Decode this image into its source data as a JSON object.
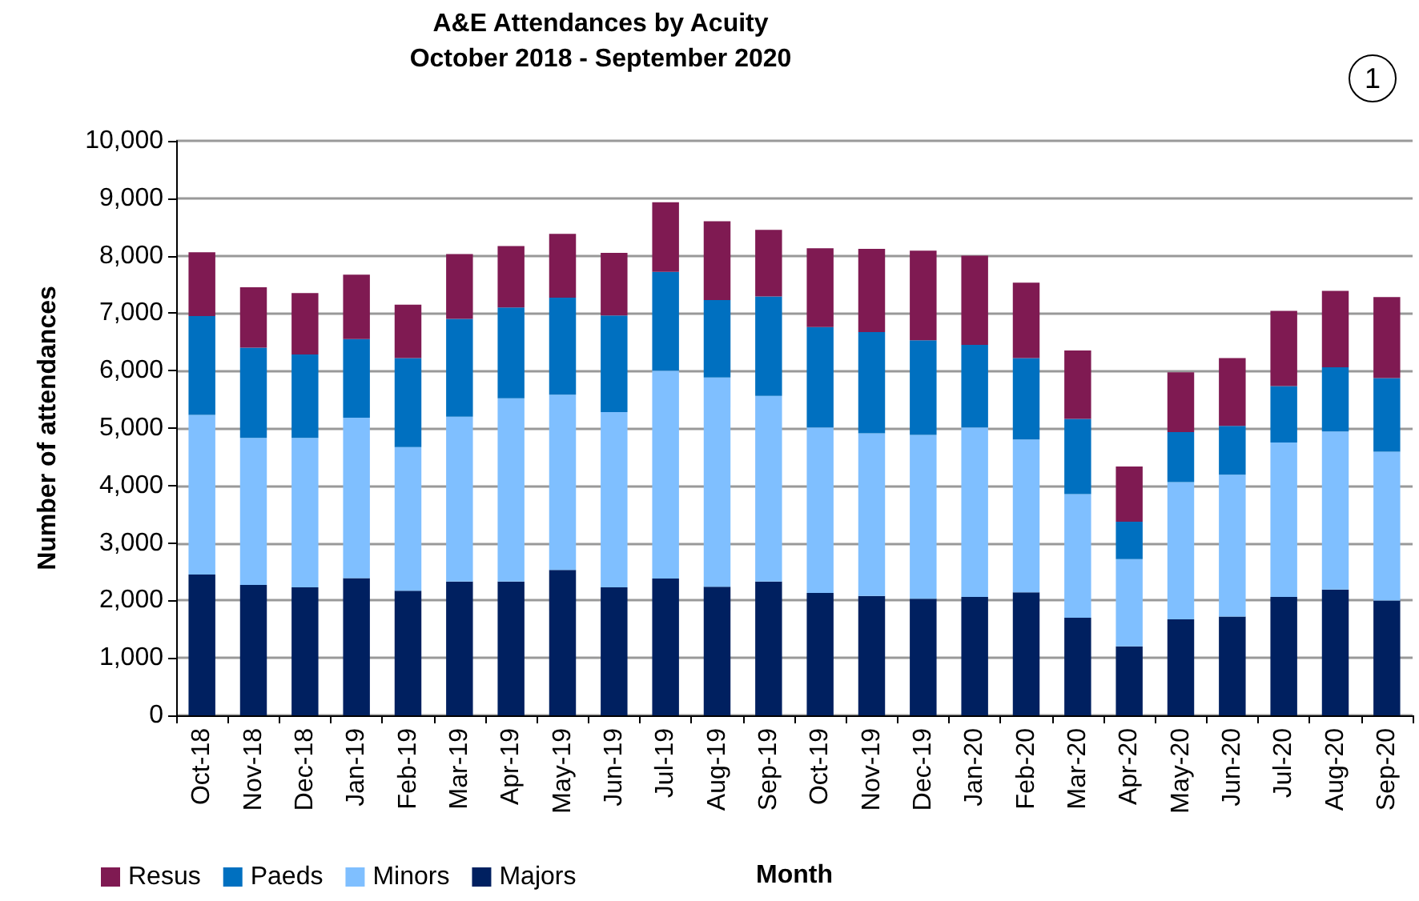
{
  "chart_data": {
    "type": "bar",
    "stacked": true,
    "title": "A&E Attendances by Acuity",
    "subtitle": "October 2018 - September 2020",
    "xlabel": "Month",
    "ylabel": "Number of attendances",
    "annotations": [
      "1"
    ],
    "categories": [
      "Oct-18",
      "Nov-18",
      "Dec-18",
      "Jan-19",
      "Feb-19",
      "Mar-19",
      "Apr-19",
      "May-19",
      "Jun-19",
      "Jul-19",
      "Aug-19",
      "Sep-19",
      "Oct-19",
      "Nov-19",
      "Dec-19",
      "Jan-20",
      "Feb-20",
      "Mar-20",
      "Apr-20",
      "May-20",
      "Jun-20",
      "Jul-20",
      "Aug-20",
      "Sep-20"
    ],
    "series": [
      {
        "name": "Majors",
        "color": "#002060",
        "values": [
          2450,
          2270,
          2230,
          2390,
          2170,
          2330,
          2330,
          2530,
          2230,
          2380,
          2240,
          2330,
          2130,
          2080,
          2030,
          2060,
          2140,
          1700,
          1200,
          1670,
          1720,
          2060,
          2190,
          2000
        ]
      },
      {
        "name": "Minors",
        "color": "#7fbfff",
        "values": [
          2780,
          2560,
          2600,
          2790,
          2500,
          2870,
          3190,
          3050,
          3050,
          3620,
          3640,
          3230,
          2880,
          2830,
          2850,
          2950,
          2660,
          2150,
          1520,
          2390,
          2470,
          2690,
          2750,
          2590
        ]
      },
      {
        "name": "Paeds",
        "color": "#0070c0",
        "values": [
          1720,
          1570,
          1450,
          1370,
          1550,
          1700,
          1580,
          1690,
          1680,
          1720,
          1350,
          1730,
          1750,
          1760,
          1650,
          1440,
          1420,
          1310,
          650,
          870,
          850,
          980,
          1120,
          1280
        ]
      },
      {
        "name": "Resus",
        "color": "#7f1a52",
        "values": [
          1110,
          1050,
          1070,
          1120,
          930,
          1130,
          1070,
          1110,
          1090,
          1210,
          1370,
          1160,
          1370,
          1450,
          1560,
          1550,
          1310,
          1190,
          960,
          1040,
          1180,
          1310,
          1330,
          1410
        ]
      }
    ],
    "ylim": [
      0,
      10000
    ],
    "yticks": [
      0,
      {
        "value": 1000,
        "label": "1,000"
      },
      {
        "value": 2000,
        "label": "2,000"
      },
      {
        "value": 3000,
        "label": "3,000"
      },
      {
        "value": 4000,
        "label": "4,000"
      },
      {
        "value": 5000,
        "label": "5,000"
      },
      {
        "value": 6000,
        "label": "6,000"
      },
      {
        "value": 7000,
        "label": "7,000"
      },
      {
        "value": 8000,
        "label": "8,000"
      },
      {
        "value": 9000,
        "label": "9,000"
      },
      {
        "value": 10000,
        "label": "10,000"
      }
    ],
    "grid": "y",
    "legend": "bottom left"
  }
}
